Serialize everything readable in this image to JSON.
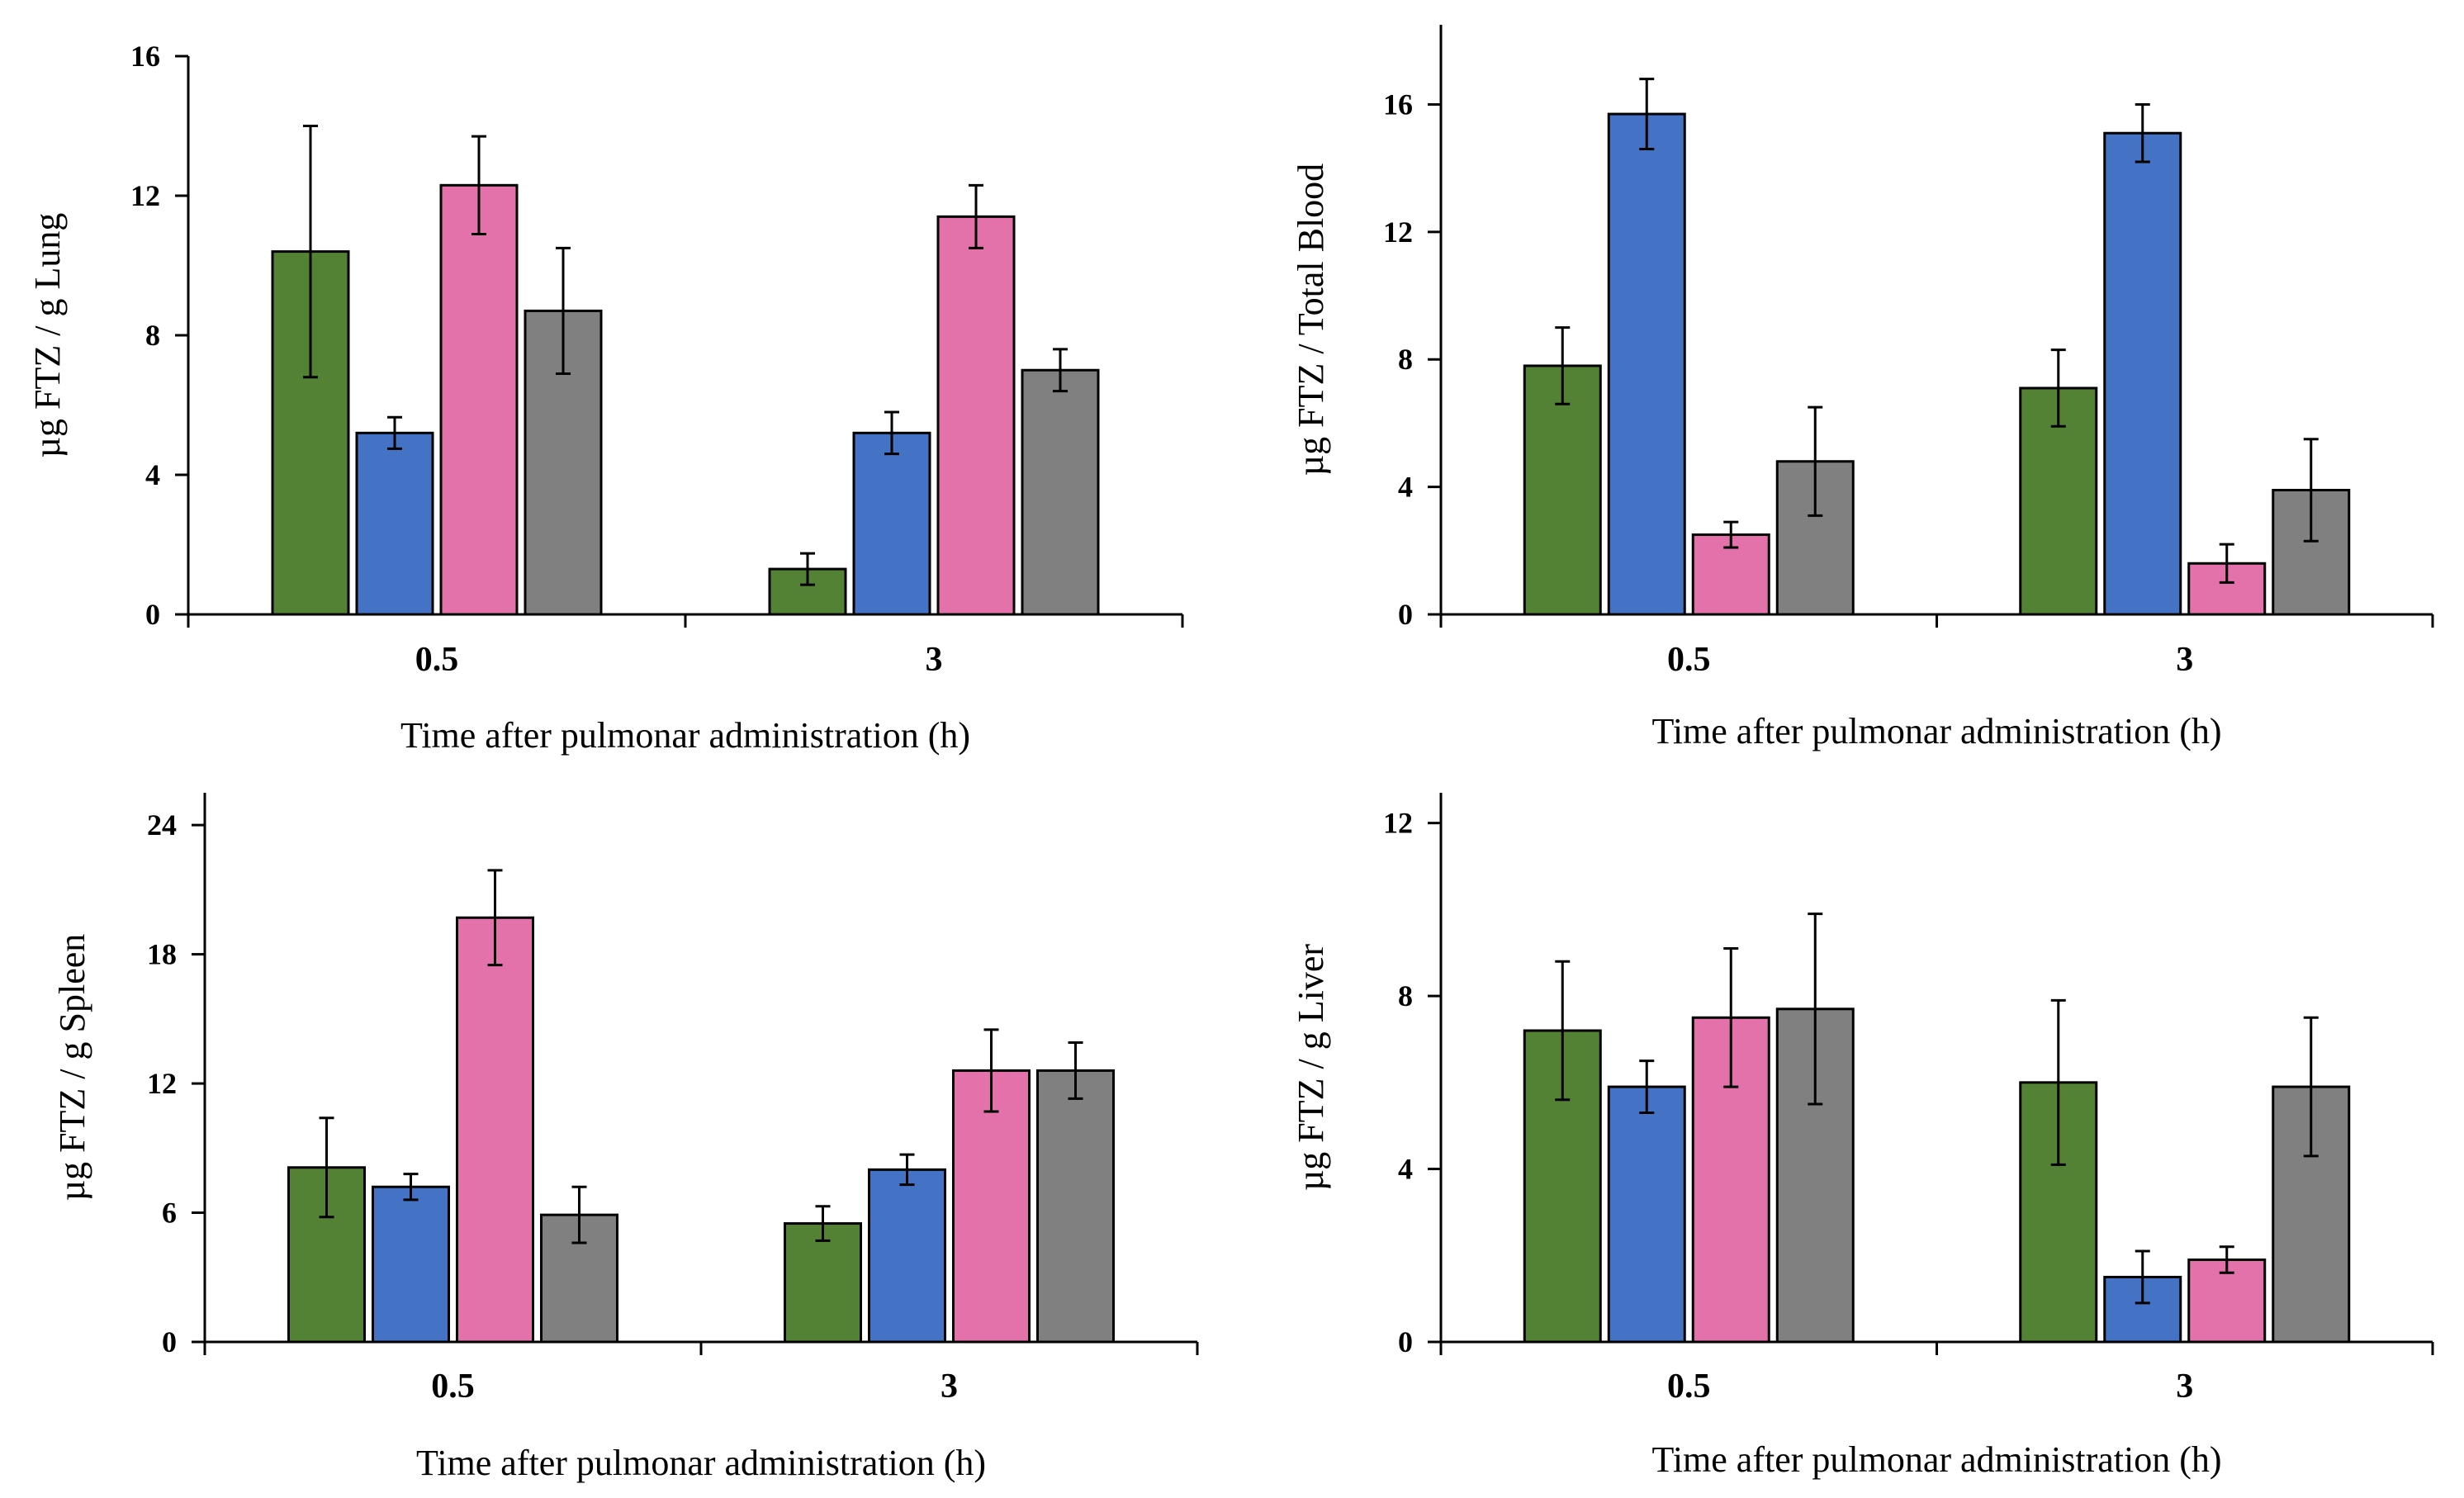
{
  "colors": {
    "green": "#548235",
    "blue": "#4472C4",
    "pink": "#E472AA",
    "gray": "#808080",
    "axis": "#000000"
  },
  "chart_data": [
    {
      "type": "bar",
      "ylabel": "µg FTZ / g Lung",
      "xlabel": "Time after pulmonar administration (h)",
      "categories": [
        "0.5",
        "3"
      ],
      "ylim": [
        0,
        16
      ],
      "yticks": [
        0,
        4,
        8,
        12,
        16
      ],
      "grid": false,
      "series": [
        {
          "name": "green",
          "values": [
            10.4,
            1.3
          ],
          "errors": [
            3.6,
            0.45
          ]
        },
        {
          "name": "blue",
          "values": [
            5.2,
            5.2
          ],
          "errors": [
            0.45,
            0.6
          ]
        },
        {
          "name": "pink",
          "values": [
            12.3,
            11.4
          ],
          "errors": [
            1.4,
            0.9
          ]
        },
        {
          "name": "gray",
          "values": [
            8.7,
            7.0
          ],
          "errors": [
            1.8,
            0.6
          ]
        }
      ]
    },
    {
      "type": "bar",
      "ylabel": "µg FTZ / Total Blood",
      "xlabel": "Time after pulmonar administration (h)",
      "categories": [
        "0.5",
        "3"
      ],
      "ylim": [
        0,
        18.5
      ],
      "yticks": [
        0,
        4,
        8,
        12,
        16
      ],
      "grid": false,
      "series": [
        {
          "name": "green",
          "values": [
            7.8,
            7.1
          ],
          "errors": [
            1.2,
            1.2
          ]
        },
        {
          "name": "blue",
          "values": [
            15.7,
            15.1
          ],
          "errors": [
            1.1,
            0.9
          ]
        },
        {
          "name": "pink",
          "values": [
            2.5,
            1.6
          ],
          "errors": [
            0.4,
            0.6
          ]
        },
        {
          "name": "gray",
          "values": [
            4.8,
            3.9
          ],
          "errors": [
            1.7,
            1.6
          ]
        }
      ]
    },
    {
      "type": "bar",
      "ylabel": "µg FTZ / g Spleen",
      "xlabel": "Time after pulmonar administration (h)",
      "categories": [
        "0.5",
        "3"
      ],
      "ylim": [
        0,
        25.5
      ],
      "yticks": [
        0,
        6,
        12,
        18,
        24
      ],
      "grid": false,
      "series": [
        {
          "name": "green",
          "values": [
            8.1,
            5.5
          ],
          "errors": [
            2.3,
            0.8
          ]
        },
        {
          "name": "blue",
          "values": [
            7.2,
            8.0
          ],
          "errors": [
            0.6,
            0.7
          ]
        },
        {
          "name": "pink",
          "values": [
            19.7,
            12.6
          ],
          "errors": [
            2.2,
            1.9
          ]
        },
        {
          "name": "gray",
          "values": [
            5.9,
            12.6
          ],
          "errors": [
            1.3,
            1.3
          ]
        }
      ]
    },
    {
      "type": "bar",
      "ylabel": "µg FTZ / g Liver",
      "xlabel": "Time after pulmonar administration (h)",
      "categories": [
        "0.5",
        "3"
      ],
      "ylim": [
        0,
        12.7
      ],
      "yticks": [
        0,
        4,
        8,
        12
      ],
      "grid": false,
      "series": [
        {
          "name": "green",
          "values": [
            7.2,
            6.0
          ],
          "errors": [
            1.6,
            1.9
          ]
        },
        {
          "name": "blue",
          "values": [
            5.9,
            1.5
          ],
          "errors": [
            0.6,
            0.6
          ]
        },
        {
          "name": "pink",
          "values": [
            7.5,
            1.9
          ],
          "errors": [
            1.6,
            0.3
          ]
        },
        {
          "name": "gray",
          "values": [
            7.7,
            5.9
          ],
          "errors": [
            2.2,
            1.6
          ]
        }
      ]
    }
  ]
}
